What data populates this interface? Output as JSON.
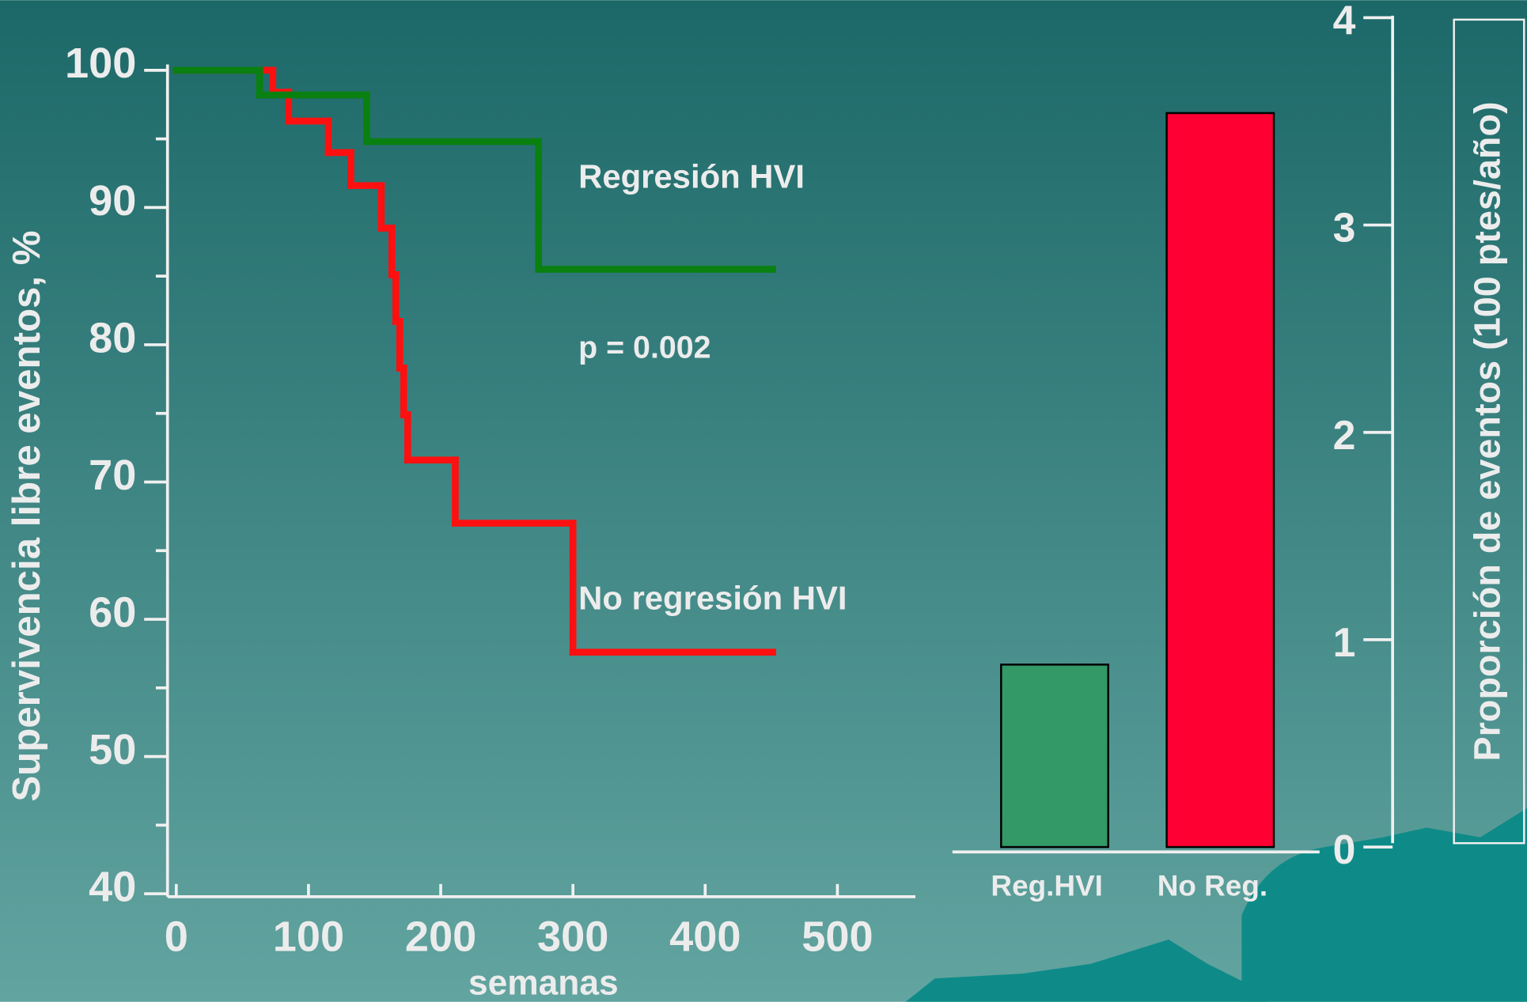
{
  "chart_data": [
    {
      "type": "step-line",
      "xlabel": "semanas",
      "ylabel": "Supervivencia libre eventos, %",
      "annotations": [
        "Regresión HVI",
        "p = 0.002",
        "No regresión HVI"
      ],
      "xlim": [
        0,
        559
      ],
      "ylim": [
        40,
        100
      ],
      "xticks": [
        0,
        100,
        200,
        300,
        400,
        500
      ],
      "yticks": [
        40,
        50,
        60,
        70,
        80,
        90,
        100
      ],
      "yminorticks": [
        45,
        55,
        65,
        75,
        85,
        95
      ],
      "series": [
        {
          "color": "#ff1010",
          "x": [
            0,
            73,
            85,
            115,
            132,
            155,
            163,
            166,
            169,
            172,
            175,
            211,
            300,
            451
          ],
          "values": [
            100,
            98.4,
            96.3,
            94,
            91.6,
            88.5,
            85.1,
            81.7,
            78.3,
            74.9,
            71.6,
            67,
            57.6,
            57.6
          ]
        },
        {
          "color": "#0a8010",
          "x": [
            0,
            63,
            144,
            274,
            451
          ],
          "values": [
            100,
            98.2,
            94.8,
            85.5,
            85.5
          ]
        }
      ]
    },
    {
      "type": "bar",
      "ylabel": "Proporción de eventos (100 ptes/año)",
      "categories": [
        "Reg.HVI",
        "No Reg."
      ],
      "values": [
        0.88,
        3.54
      ],
      "colors": [
        "#339966",
        "#ff0033"
      ],
      "ylim": [
        0,
        4
      ],
      "yticks": [
        0,
        1,
        2,
        3,
        4
      ]
    }
  ]
}
